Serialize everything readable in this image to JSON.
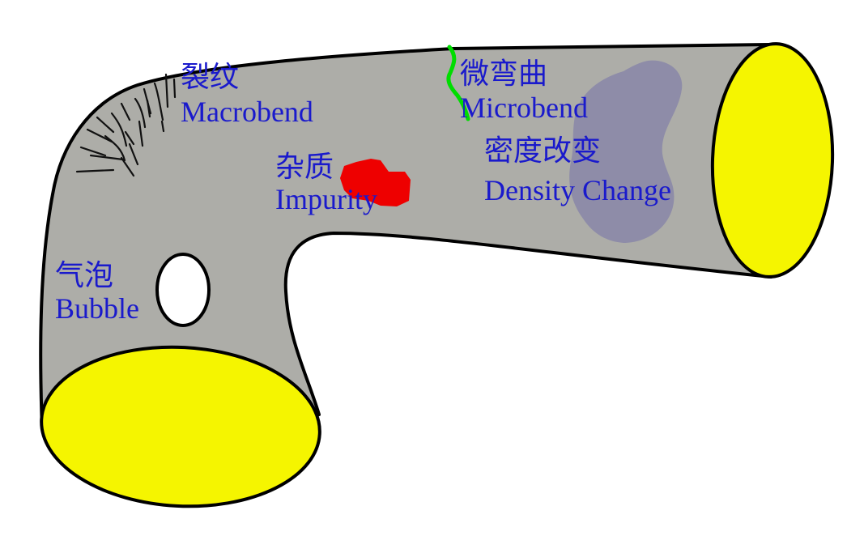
{
  "labels": {
    "macrobend": {
      "zh": "裂纹",
      "en": "Macrobend"
    },
    "microbend": {
      "zh": "微弯曲",
      "en": "Microbend"
    },
    "impurity": {
      "zh": "杂质",
      "en": "Impurity"
    },
    "density_change": {
      "zh": "密度改变",
      "en": "Density Change"
    },
    "bubble": {
      "zh": "气泡",
      "en": "Bubble"
    }
  },
  "colors": {
    "fiber": "#adada8",
    "fiber_end": "#f5f500",
    "label": "#1a1acc",
    "impurity": "#ee0000",
    "microbend": "#00dd00",
    "density_change": "#8e8ca8",
    "bubble": "#ffffff"
  }
}
